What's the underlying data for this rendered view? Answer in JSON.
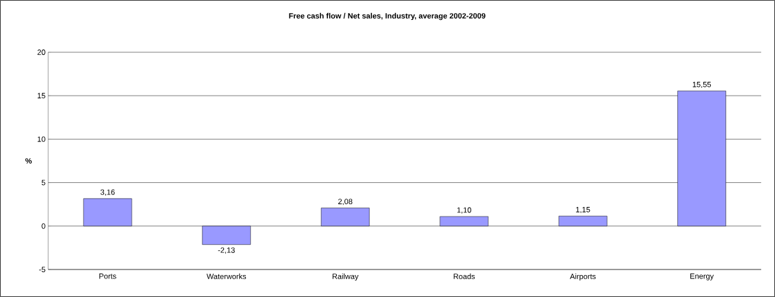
{
  "chart_data": {
    "type": "bar",
    "title": "Free cash flow / Net sales, Industry, average 2002-2009",
    "ylabel": "%",
    "categories": [
      "Ports",
      "Waterworks",
      "Railway",
      "Roads",
      "Airports",
      "Energy"
    ],
    "values": [
      3.16,
      -2.13,
      2.08,
      1.1,
      1.15,
      15.55
    ],
    "value_labels": [
      "3,16",
      "-2,13",
      "2,08",
      "1,10",
      "1,15",
      "15,55"
    ],
    "color": "#9999ff",
    "ylim": [
      -5,
      20
    ],
    "yticks": [
      -5,
      0,
      5,
      10,
      15,
      20
    ],
    "grid": "y"
  }
}
